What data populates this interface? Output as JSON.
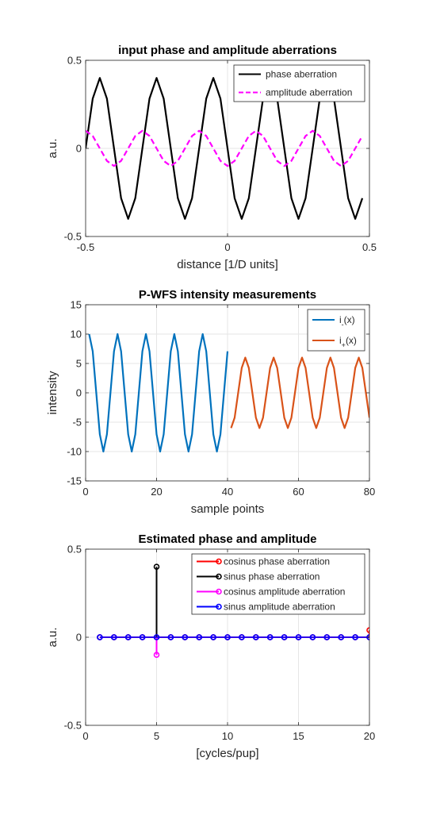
{
  "chart_data": [
    {
      "type": "line",
      "title": "input phase and amplitude aberrations",
      "xlabel": "distance [1/D units]",
      "ylabel": "a.u.",
      "xlim": [
        -0.5,
        0.5
      ],
      "ylim": [
        -0.5,
        0.5
      ],
      "xticks": [
        -0.5,
        0,
        0.5
      ],
      "yticks": [
        -0.5,
        0,
        0.5
      ],
      "xtick_labels": [
        "-0.5",
        "0",
        "0.5"
      ],
      "ytick_labels": [
        "-0.5",
        "0",
        "0.5"
      ],
      "grid": true,
      "legend": "top-right",
      "series": [
        {
          "name": "phase aberration",
          "color": "#000000",
          "dash": "solid",
          "x": [
            -0.5,
            -0.475,
            -0.45,
            -0.425,
            -0.4,
            -0.375,
            -0.35,
            -0.325,
            -0.3,
            -0.275,
            -0.25,
            -0.225,
            -0.2,
            -0.175,
            -0.15,
            -0.125,
            -0.1,
            -0.075,
            -0.05,
            -0.025,
            0,
            0.025,
            0.05,
            0.075,
            0.1,
            0.125,
            0.15,
            0.175,
            0.2,
            0.225,
            0.25,
            0.275,
            0.3,
            0.325,
            0.35,
            0.375,
            0.4,
            0.425,
            0.45,
            0.475
          ],
          "y": [
            0,
            0.2828,
            0.4,
            0.2828,
            0,
            -0.2828,
            -0.4,
            -0.2828,
            0,
            0.2828,
            0.4,
            0.2828,
            0,
            -0.2828,
            -0.4,
            -0.2828,
            0,
            0.2828,
            0.4,
            0.2828,
            0,
            -0.2828,
            -0.4,
            -0.2828,
            0,
            0.2828,
            0.4,
            0.2828,
            0,
            -0.2828,
            -0.4,
            -0.2828,
            0,
            0.2828,
            0.4,
            0.2828,
            0,
            -0.2828,
            -0.4,
            -0.2828
          ]
        },
        {
          "name": "amplitude aberration",
          "color": "#ff00ff",
          "dash": "dashed",
          "x": [
            -0.5,
            -0.475,
            -0.45,
            -0.425,
            -0.4,
            -0.375,
            -0.35,
            -0.325,
            -0.3,
            -0.275,
            -0.25,
            -0.225,
            -0.2,
            -0.175,
            -0.15,
            -0.125,
            -0.1,
            -0.075,
            -0.05,
            -0.025,
            0,
            0.025,
            0.05,
            0.075,
            0.1,
            0.125,
            0.15,
            0.175,
            0.2,
            0.225,
            0.25,
            0.275,
            0.3,
            0.325,
            0.35,
            0.375,
            0.4,
            0.425,
            0.45,
            0.475
          ],
          "y": [
            0.1,
            0.0707,
            0,
            -0.0707,
            -0.1,
            -0.0707,
            0,
            0.0707,
            0.1,
            0.0707,
            0,
            -0.0707,
            -0.1,
            -0.0707,
            0,
            0.0707,
            0.1,
            0.0707,
            0,
            -0.0707,
            -0.1,
            -0.0707,
            0,
            0.0707,
            0.1,
            0.0707,
            0,
            -0.0707,
            -0.1,
            -0.0707,
            0,
            0.0707,
            0.1,
            0.0707,
            0,
            -0.0707,
            -0.1,
            -0.0707,
            0,
            0.0707
          ]
        }
      ]
    },
    {
      "type": "line",
      "title": "P-WFS intensity measurements",
      "xlabel": "sample points",
      "ylabel": "intensity",
      "xlim": [
        0,
        80
      ],
      "ylim": [
        -15,
        15
      ],
      "xticks": [
        0,
        20,
        40,
        60,
        80
      ],
      "yticks": [
        -15,
        -10,
        -5,
        0,
        5,
        10,
        15
      ],
      "xtick_labels": [
        "0",
        "20",
        "40",
        "60",
        "80"
      ],
      "ytick_labels": [
        "-15",
        "-10",
        "-5",
        "0",
        "5",
        "10",
        "15"
      ],
      "grid": true,
      "legend": "top-right",
      "series": [
        {
          "name": "i",
          "subscript": "-",
          "suffix": "(x)",
          "color": "#0072bd",
          "dash": "solid",
          "x": [
            1,
            2,
            3,
            4,
            5,
            6,
            7,
            8,
            9,
            10,
            11,
            12,
            13,
            14,
            15,
            16,
            17,
            18,
            19,
            20,
            21,
            22,
            23,
            24,
            25,
            26,
            27,
            28,
            29,
            30,
            31,
            32,
            33,
            34,
            35,
            36,
            37,
            38,
            39,
            40
          ],
          "y": [
            10,
            7.07,
            0,
            -7.07,
            -10,
            -7.07,
            0,
            7.07,
            10,
            7.07,
            0,
            -7.07,
            -10,
            -7.07,
            0,
            7.07,
            10,
            7.07,
            0,
            -7.07,
            -10,
            -7.07,
            0,
            7.07,
            10,
            7.07,
            0,
            -7.07,
            -10,
            -7.07,
            0,
            7.07,
            10,
            7.07,
            0,
            -7.07,
            -10,
            -7.07,
            0,
            7.07
          ]
        },
        {
          "name": "i",
          "subscript": "+",
          "suffix": "(x)",
          "color": "#d95319",
          "dash": "solid",
          "x": [
            41,
            42,
            43,
            44,
            45,
            46,
            47,
            48,
            49,
            50,
            51,
            52,
            53,
            54,
            55,
            56,
            57,
            58,
            59,
            60,
            61,
            62,
            63,
            64,
            65,
            66,
            67,
            68,
            69,
            70,
            71,
            72,
            73,
            74,
            75,
            76,
            77,
            78,
            79,
            80
          ],
          "y": [
            -6,
            -4.24,
            0,
            4.24,
            6,
            4.24,
            0,
            -4.24,
            -6,
            -4.24,
            0,
            4.24,
            6,
            4.24,
            0,
            -4.24,
            -6,
            -4.24,
            0,
            4.24,
            6,
            4.24,
            0,
            -4.24,
            -6,
            -4.24,
            0,
            4.24,
            6,
            4.24,
            0,
            -4.24,
            -6,
            -4.24,
            0,
            4.24,
            6,
            4.24,
            0,
            -4.24
          ]
        }
      ]
    },
    {
      "type": "stem",
      "title": "Estimated phase and amplitude",
      "xlabel": "[cycles/pup]",
      "ylabel": "a.u.",
      "xlim": [
        0,
        20
      ],
      "ylim": [
        -0.5,
        0.5
      ],
      "xticks": [
        0,
        5,
        10,
        15,
        20
      ],
      "yticks": [
        -0.5,
        0,
        0.5
      ],
      "xtick_labels": [
        "0",
        "5",
        "10",
        "15",
        "20"
      ],
      "ytick_labels": [
        "-0.5",
        "0",
        "0.5"
      ],
      "grid": true,
      "legend": "top-right",
      "series": [
        {
          "name": "cosinus phase aberration",
          "color": "#ff0000",
          "x": [
            1,
            2,
            3,
            4,
            5,
            6,
            7,
            8,
            9,
            10,
            11,
            12,
            13,
            14,
            15,
            16,
            17,
            18,
            19,
            20
          ],
          "y": [
            0,
            0,
            0,
            0,
            0,
            0,
            0,
            0,
            0,
            0,
            0,
            0,
            0,
            0,
            0,
            0,
            0,
            0,
            0,
            0.04
          ]
        },
        {
          "name": "sinus phase aberration",
          "color": "#000000",
          "x": [
            1,
            2,
            3,
            4,
            5,
            6,
            7,
            8,
            9,
            10,
            11,
            12,
            13,
            14,
            15,
            16,
            17,
            18,
            19,
            20
          ],
          "y": [
            0,
            0,
            0,
            0,
            0.4,
            0,
            0,
            0,
            0,
            0,
            0,
            0,
            0,
            0,
            0,
            0,
            0,
            0,
            0,
            0
          ]
        },
        {
          "name": "cosinus amplitude aberration",
          "color": "#ff00ff",
          "x": [
            1,
            2,
            3,
            4,
            5,
            6,
            7,
            8,
            9,
            10,
            11,
            12,
            13,
            14,
            15,
            16,
            17,
            18,
            19,
            20
          ],
          "y": [
            0,
            0,
            0,
            0,
            -0.1,
            0,
            0,
            0,
            0,
            0,
            0,
            0,
            0,
            0,
            0,
            0,
            0,
            0,
            0,
            0
          ]
        },
        {
          "name": "sinus amplitude aberration",
          "color": "#0000ff",
          "x": [
            1,
            2,
            3,
            4,
            5,
            6,
            7,
            8,
            9,
            10,
            11,
            12,
            13,
            14,
            15,
            16,
            17,
            18,
            19,
            20
          ],
          "y": [
            0,
            0,
            0,
            0,
            0,
            0,
            0,
            0,
            0,
            0,
            0,
            0,
            0,
            0,
            0,
            0,
            0,
            0,
            0,
            0
          ]
        }
      ]
    }
  ]
}
